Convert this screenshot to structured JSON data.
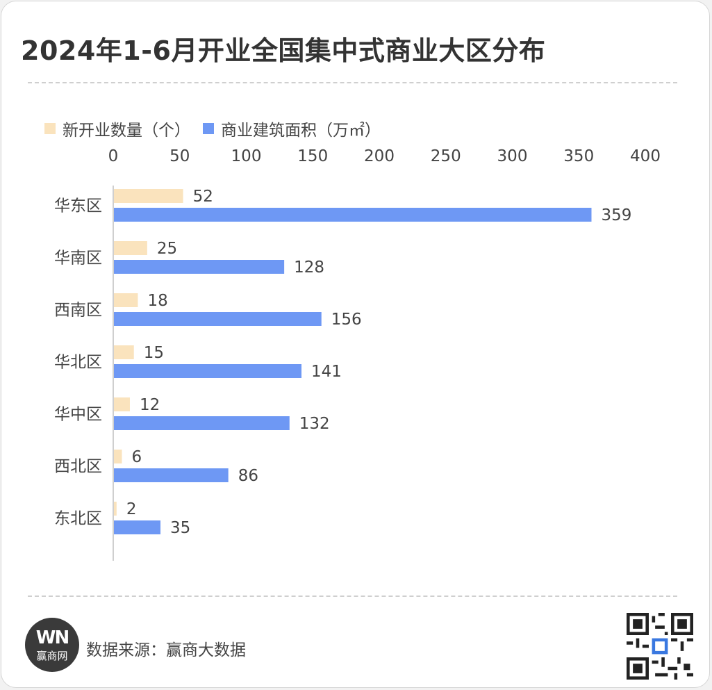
{
  "title": "2024年1-6月开业全国集中式商业大区分布",
  "legend": {
    "series1": "新开业数量（个）",
    "series2": "商业建筑面积（万㎡）"
  },
  "footer": {
    "source": "数据来源：赢商大数据",
    "logo_mark": "WN",
    "logo_text": "赢商网"
  },
  "colors": {
    "series1": "#fae3bd",
    "series2": "#6e98f4",
    "text": "#444444",
    "axis": "#bfbfbf"
  },
  "chart_data": {
    "type": "bar",
    "orientation": "horizontal",
    "categories": [
      "华东区",
      "华南区",
      "西南区",
      "华北区",
      "华中区",
      "西北区",
      "东北区"
    ],
    "series": [
      {
        "name": "新开业数量（个）",
        "values": [
          52,
          25,
          18,
          15,
          12,
          6,
          2
        ]
      },
      {
        "name": "商业建筑面积（万㎡）",
        "values": [
          359,
          128,
          156,
          141,
          132,
          86,
          35
        ]
      }
    ],
    "xlim": [
      0,
      400
    ],
    "xticks": [
      0,
      50,
      100,
      150,
      200,
      250,
      300,
      350,
      400
    ],
    "xaxis_position": "top",
    "data_labels": true,
    "grid": false,
    "legend_position": "top-left"
  }
}
